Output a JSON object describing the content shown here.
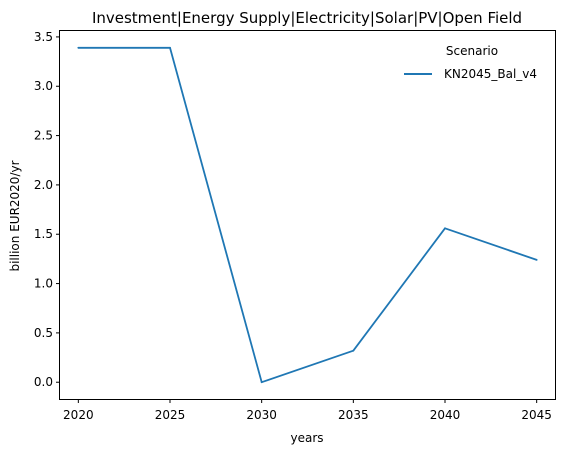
{
  "chart_data": {
    "type": "line",
    "title": "Investment|Energy Supply|Electricity|Solar|PV|Open Field",
    "xlabel": "years",
    "ylabel": "billion EUR2020/yr",
    "x": [
      2020,
      2025,
      2030,
      2035,
      2040,
      2045
    ],
    "series": [
      {
        "name": "KN2045_Bal_v4",
        "color": "#1f77b4",
        "values": [
          3.39,
          3.39,
          0.0,
          0.32,
          1.56,
          1.24
        ]
      }
    ],
    "xticks": [
      "2020",
      "2025",
      "2030",
      "2035",
      "2040",
      "2045"
    ],
    "yticks": [
      "0.0",
      "0.5",
      "1.0",
      "1.5",
      "2.0",
      "2.5",
      "3.0",
      "3.5"
    ],
    "xlim": [
      2019.0,
      2046.0
    ],
    "ylim": [
      -0.17,
      3.56
    ],
    "grid": false,
    "legend": {
      "title": "Scenario",
      "placement": "top-right"
    }
  }
}
